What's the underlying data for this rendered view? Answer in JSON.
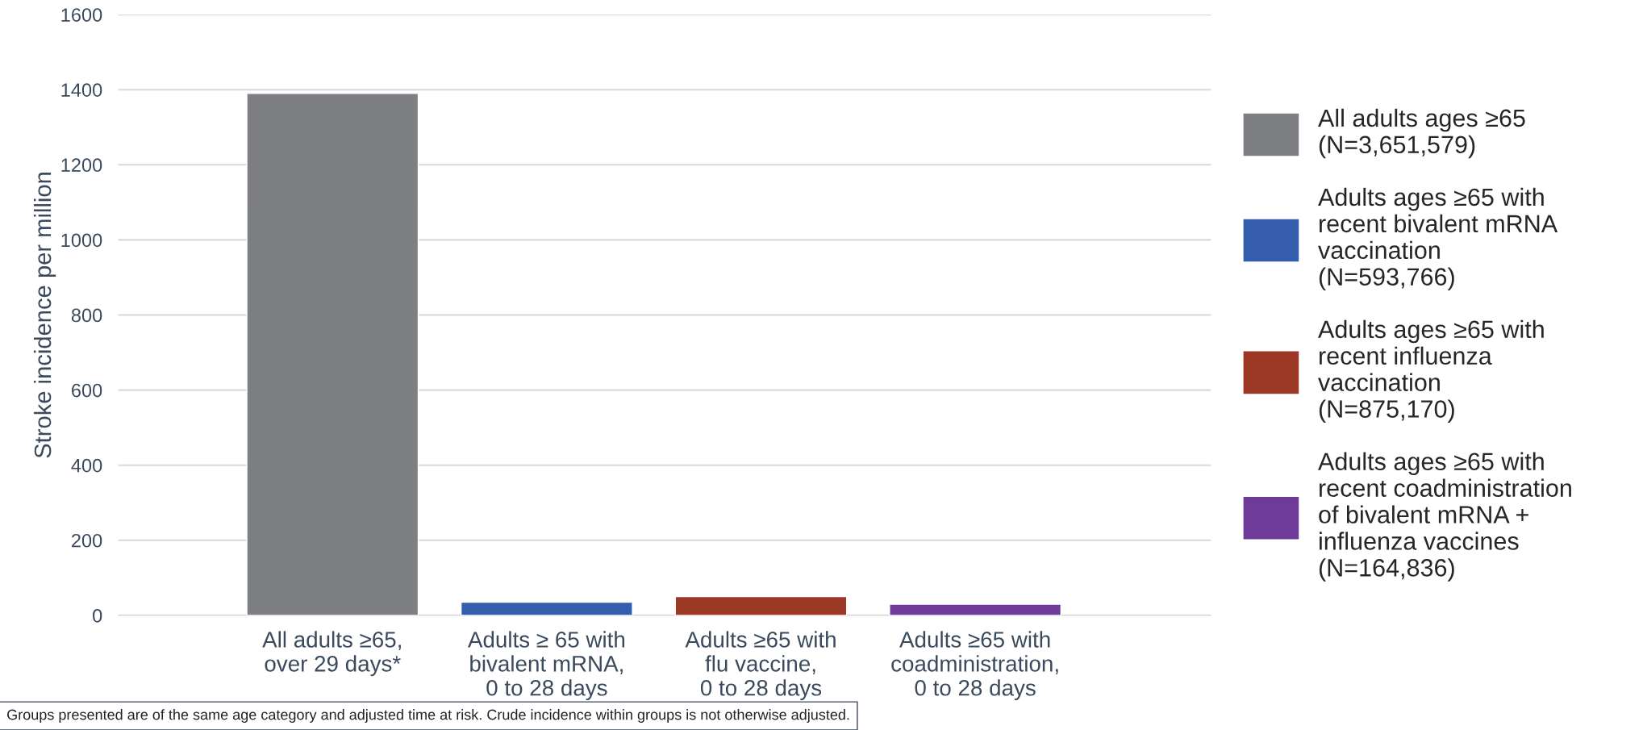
{
  "chart_data": {
    "type": "bar",
    "ylabel": "Stroke incidence per million",
    "categories": [
      "All adults ≥65,\nover 29 days*",
      "Adults ≥ 65 with\nbivalent mRNA,\n0 to 28 days",
      "Adults ≥65 with\nflu vaccine,\n0 to 28 days",
      "Adults ≥65 with\ncoadministration,\n0 to 28 days"
    ],
    "series": [
      {
        "name": "All adults ages ≥65\n(N=3,651,579)",
        "color": "#7e7f83",
        "values": [
          1390,
          null,
          null,
          null
        ]
      },
      {
        "name": "Adults ages ≥65 with\nrecent bivalent mRNA\nvaccination\n(N=593,766)",
        "color": "#345ead",
        "values": [
          null,
          35,
          null,
          null
        ]
      },
      {
        "name": "Adults ages ≥65 with\nrecent influenza\nvaccination\n(N=875,170)",
        "color": "#9c3826",
        "values": [
          null,
          null,
          50,
          null
        ]
      },
      {
        "name": "Adults ages ≥65 with\nrecent coadministration\nof bivalent mRNA +\ninfluenza vaccines\n(N=164,836)",
        "color": "#6e3b9a",
        "values": [
          null,
          null,
          null,
          30
        ]
      }
    ],
    "ylim": [
      0,
      1600
    ],
    "yticks": [
      0,
      200,
      400,
      600,
      800,
      1000,
      1200,
      1400,
      1600
    ],
    "grid": "y",
    "legend": "right",
    "annotations": [
      "Groups presented are of the same age category and adjusted time at risk. Crude incidence within groups is not otherwise adjusted."
    ]
  }
}
